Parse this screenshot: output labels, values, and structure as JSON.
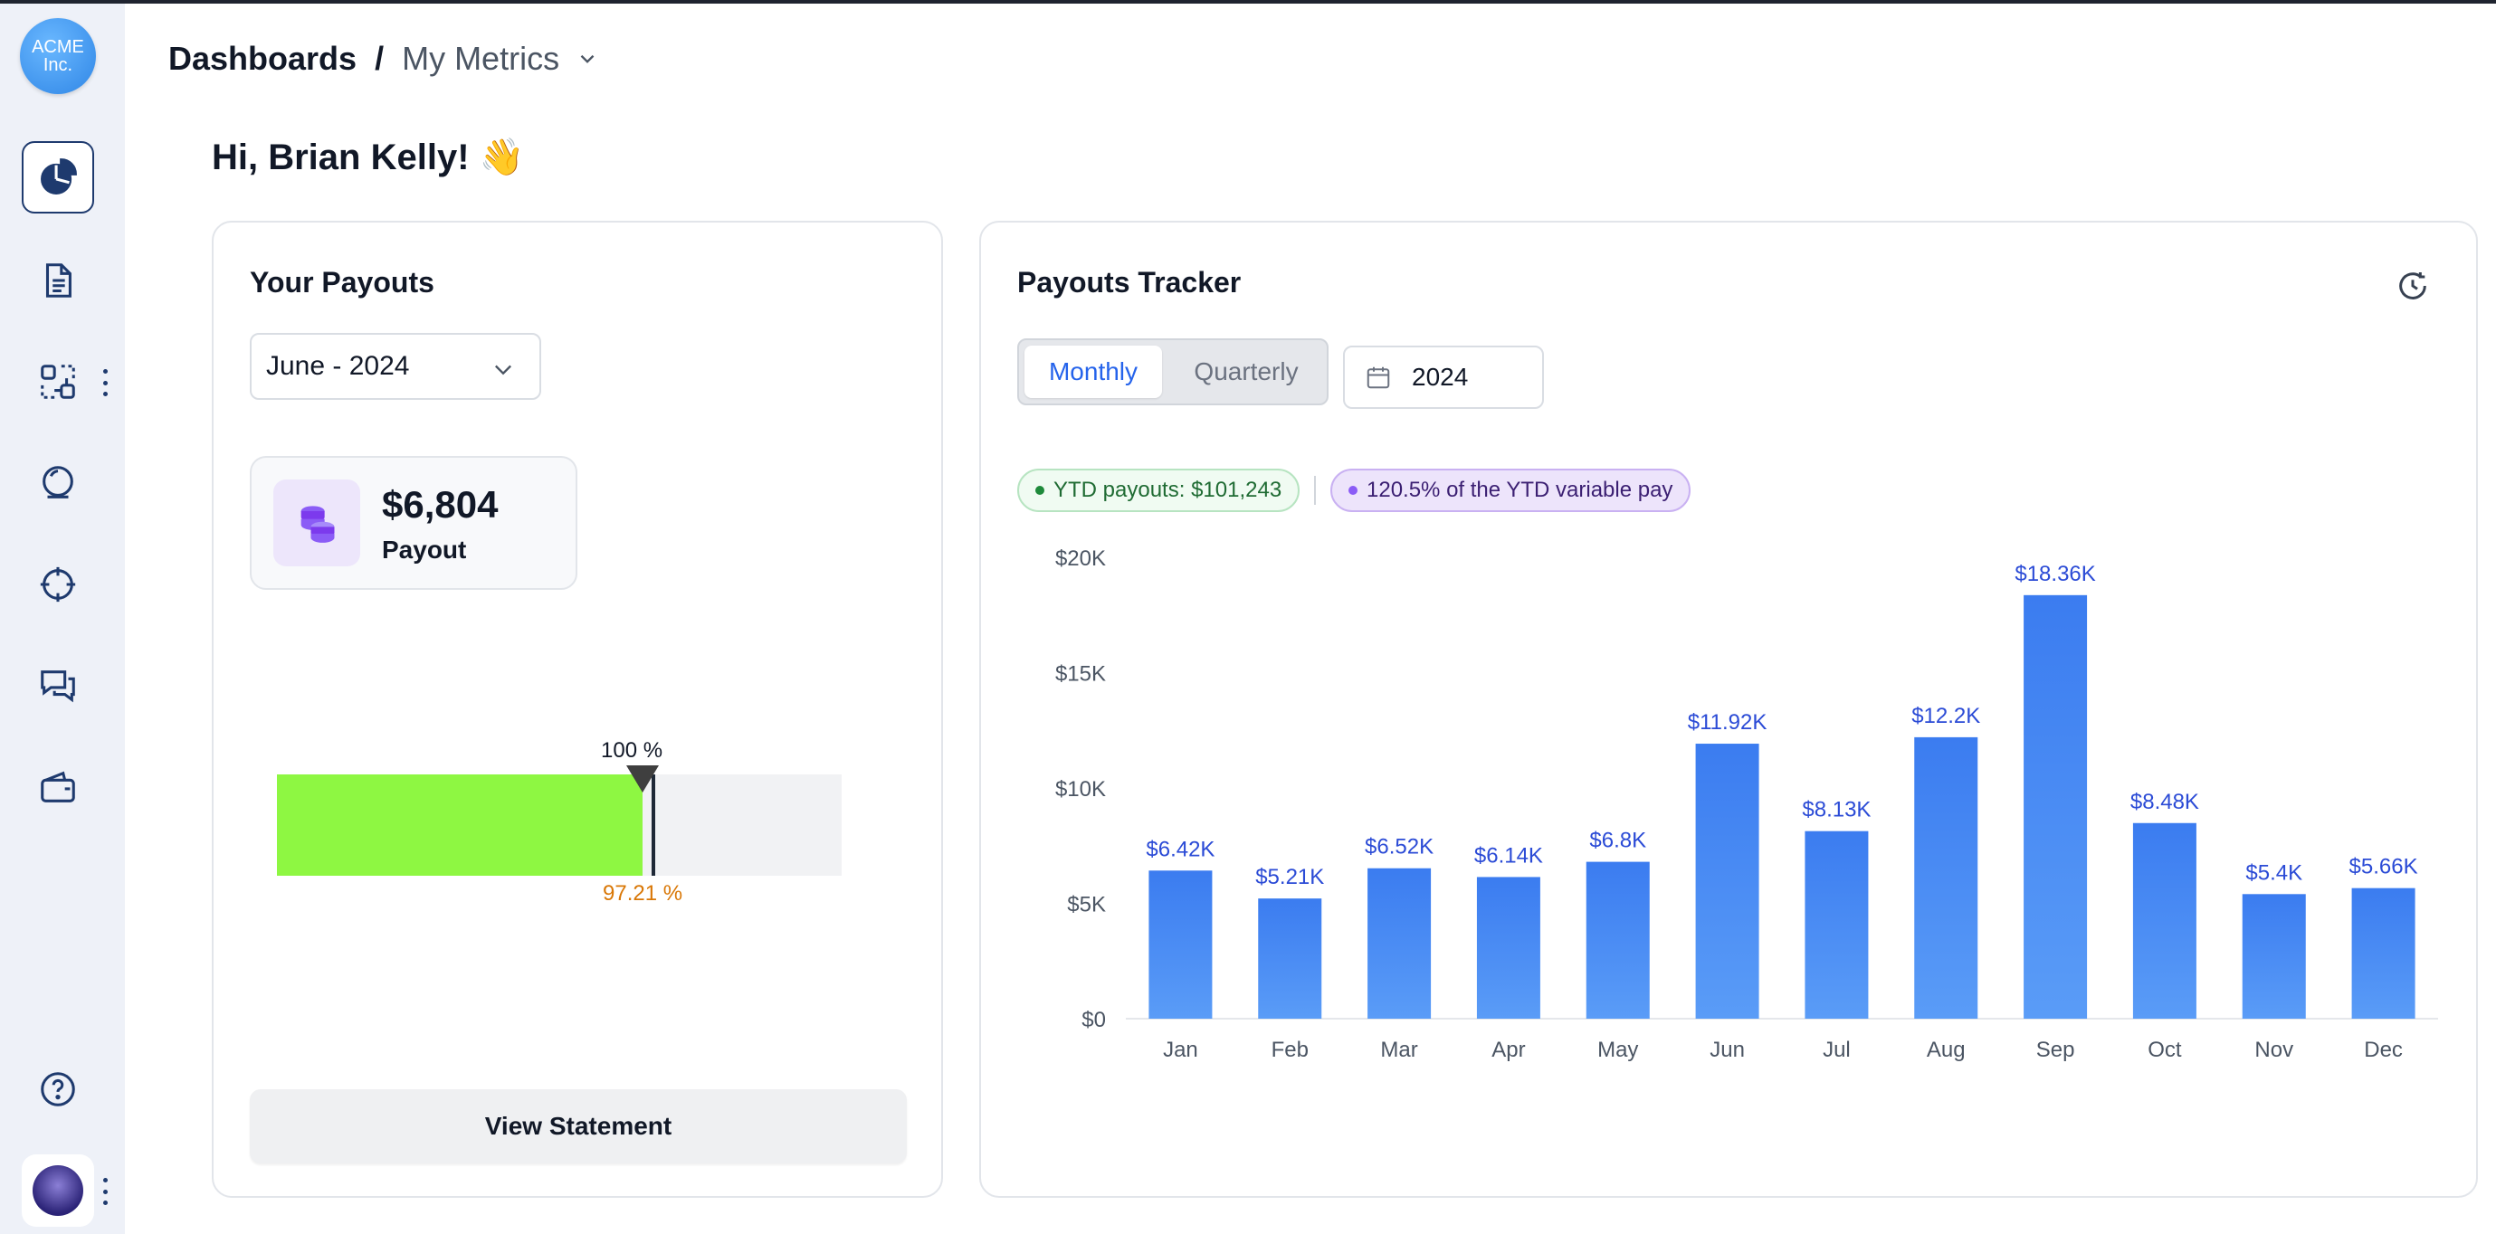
{
  "sidebar": {
    "logo": {
      "line1": "ACME",
      "line2": "Inc."
    },
    "items": [
      {
        "icon": "pie-chart-icon",
        "active": true
      },
      {
        "icon": "document-icon"
      },
      {
        "icon": "workflow-icon",
        "has_menu": true
      },
      {
        "icon": "crystal-ball-icon"
      },
      {
        "icon": "target-icon"
      },
      {
        "icon": "chat-icon"
      },
      {
        "icon": "wallet-icon"
      }
    ],
    "help_icon": "help-icon",
    "avatar_icon": "user-avatar"
  },
  "header": {
    "breadcrumb_root": "Dashboards",
    "breadcrumb_sep": "/",
    "breadcrumb_current": "My Metrics"
  },
  "greeting": "Hi, Brian Kelly! 👋",
  "payouts": {
    "title": "Your Payouts",
    "period": "June - 2024",
    "amount": "$6,804",
    "amount_label": "Payout",
    "gauge": {
      "value": 97.21,
      "target": 100,
      "value_label": "97.21 %",
      "target_label": "100 %",
      "max": 150
    },
    "view_button": "View Statement"
  },
  "tracker": {
    "title": "Payouts Tracker",
    "tabs": [
      {
        "label": "Monthly",
        "active": true
      },
      {
        "label": "Quarterly",
        "active": false
      }
    ],
    "year": "2024",
    "ytd_payouts": "YTD payouts: $101,243",
    "ytd_variable": "120.5% of the YTD variable pay"
  },
  "chart_data": {
    "type": "bar",
    "categories": [
      "Jan",
      "Feb",
      "Mar",
      "Apr",
      "May",
      "Jun",
      "Jul",
      "Aug",
      "Sep",
      "Oct",
      "Nov",
      "Dec"
    ],
    "values": [
      6420,
      5210,
      6520,
      6140,
      6800,
      11920,
      8130,
      12200,
      18360,
      8480,
      5400,
      5660
    ],
    "data_labels": [
      "$6.42K",
      "$5.21K",
      "$6.52K",
      "$6.14K",
      "$6.8K",
      "$11.92K",
      "$8.13K",
      "$12.2K",
      "$18.36K",
      "$8.48K",
      "$5.4K",
      "$5.66K"
    ],
    "y_ticks": [
      0,
      5000,
      10000,
      15000,
      20000
    ],
    "y_tick_labels": [
      "$0",
      "$5K",
      "$10K",
      "$15K",
      "$20K"
    ],
    "ylim": [
      0,
      20000
    ],
    "bar_color": "#4285f4",
    "label_color": "#2b4bd6",
    "grid": false
  }
}
